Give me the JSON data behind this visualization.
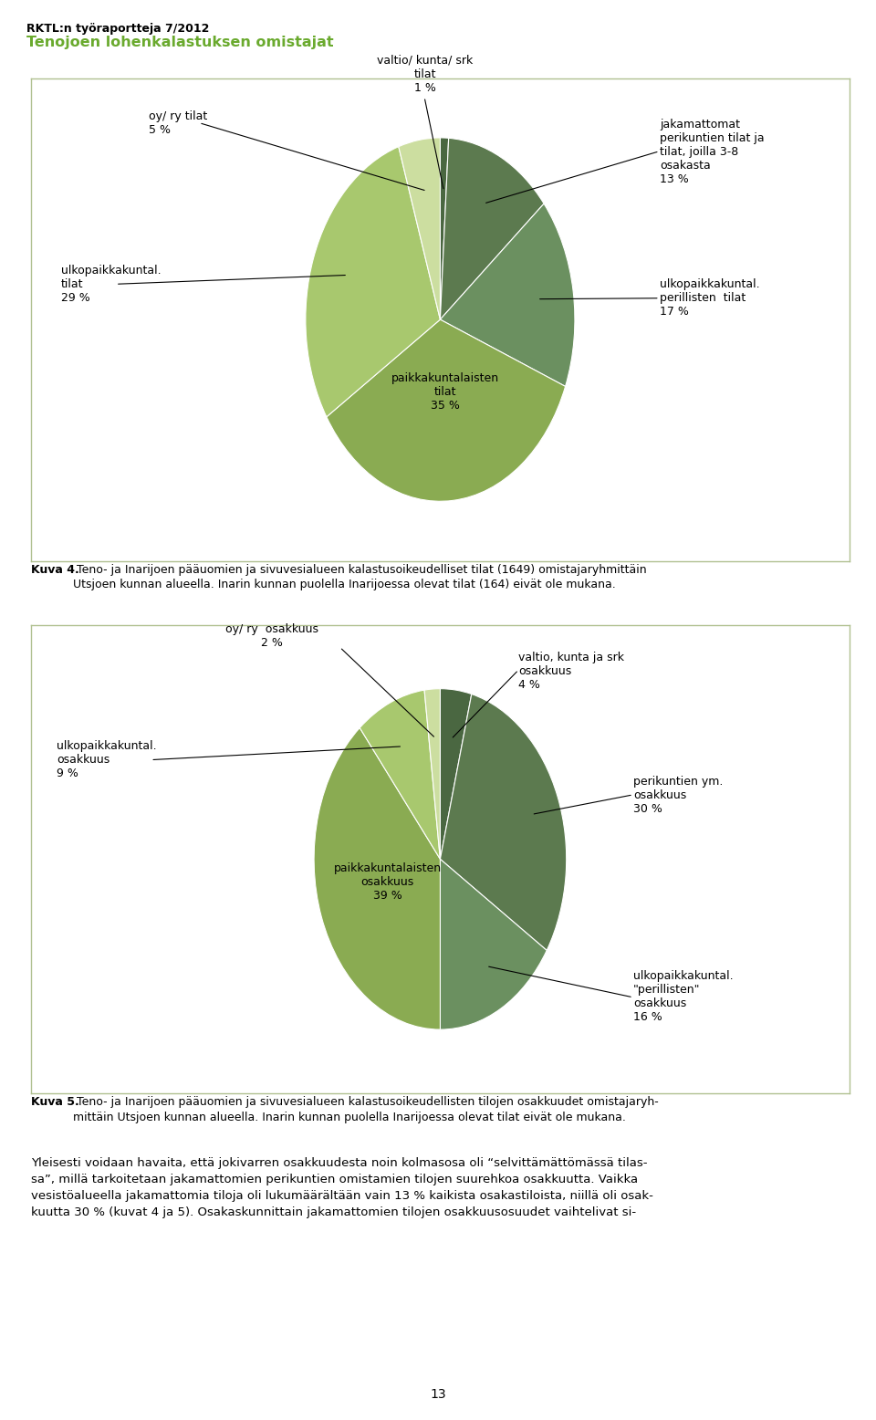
{
  "title_small": "RKTL:n työraportteja 7/2012",
  "title_large": "Tenojoen lohenkalastuksen omistajat",
  "title_large_color": "#6aaa2e",
  "chart1_values": [
    1,
    13,
    17,
    35,
    29,
    5
  ],
  "chart1_colors": [
    "#4a6741",
    "#5c7a4f",
    "#6b9060",
    "#8aab52",
    "#a8c86e",
    "#ccdea0"
  ],
  "chart2_values": [
    4,
    30,
    16,
    39,
    9,
    2
  ],
  "chart2_colors": [
    "#4a6741",
    "#5c7a4f",
    "#6b9060",
    "#8aab52",
    "#a8c86e",
    "#ccdea0"
  ],
  "caption1_bold": "Kuva 4.",
  "caption1_rest": " Teno- ja Inarijoen pääuomien ja sivuvesialueen kalastusoikeudelliset tilat (1649) omistajaryhmittäin\nUtsjoen kunnan alueella. Inarin kunnan puolella Inarijoessa olevat tilat (164) eivät ole mukana.",
  "caption2_bold": "Kuva 5.",
  "caption2_rest": " Teno- ja Inarijoen pääuomien ja sivuvesialueen kalastusoikeudellisten tilojen osakkuudet omistajaryh-\nmittäin Utsjoen kunnan alueella. Inarin kunnan puolella Inarijoessa olevat tilat eivät ole mukana.",
  "body_text": "Yleisesti voidaan havaita, että jokivarren osakkuudesta noin kolmasosa oli “selvittämättömässä tilas-\nsa”, millä tarkoitetaan jakamattomien perikuntien omistamien tilojen suurehkoa osakkuutta. Vaikka\nvesistöalueella jakamattomia tiloja oli lukumäärältään vain 13 % kaikista osakastiloista, niillä oli osak-\nkuutta 30 % (kuvat 4 ja 5). Osakaskunnittain jakamattomien tilojen osakkuusosuudet vaihtelivat si-",
  "page_number": "13",
  "background_color": "#ffffff",
  "box_border_color": "#b8c8a0",
  "text_color": "#000000",
  "fontsize_label": 9,
  "fontsize_caption": 9,
  "fontsize_body": 9.5
}
